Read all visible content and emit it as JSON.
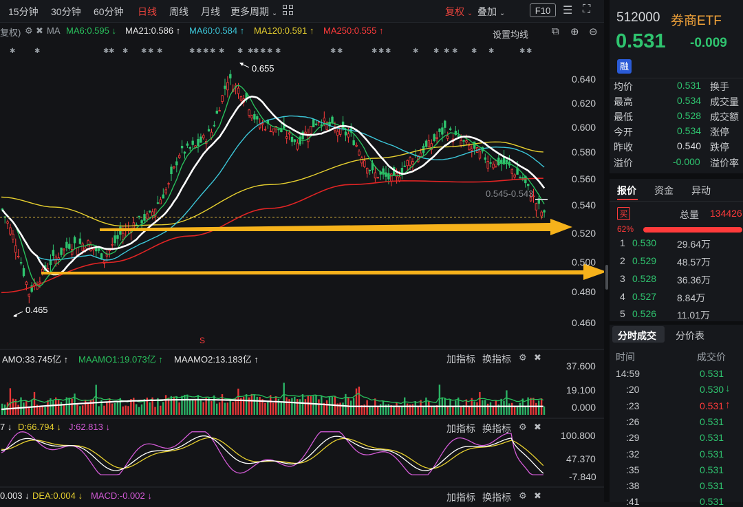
{
  "toolbar": {
    "timeframes": [
      "15分钟",
      "30分钟",
      "60分钟",
      "日线",
      "周线",
      "月线",
      "更多周期"
    ],
    "active": "日线",
    "fq": "复权",
    "overlay": "叠加",
    "f10": "F10"
  },
  "ma_legend": {
    "prefix": "复权)",
    "label": "MA",
    "ma6": "MA6:0.595 ↓",
    "ma21": "MA21:0.586 ↑",
    "ma60": "MA60:0.584 ↑",
    "ma120": "MA120:0.591 ↑",
    "ma250": "MA250:0.555 ↑",
    "settings": "设置均线"
  },
  "price_axis": [
    "0.640",
    "0.620",
    "0.600",
    "0.580",
    "0.560",
    "0.540",
    "0.520",
    "0.500",
    "0.480",
    "0.460"
  ],
  "annotations": {
    "high": "0.655",
    "low": "0.465",
    "range": "0.545-0.543",
    "signal": "S"
  },
  "amo": {
    "amo": "AMO:33.745亿 ↑",
    "maamo1": "MAAMO1:19.073亿 ↑",
    "maamo2": "MAAMO2:13.183亿 ↑",
    "add": "加指标",
    "switch": "换指标",
    "axis": [
      "37.600",
      "19.100",
      "0.000"
    ]
  },
  "kdj": {
    "k": "7 ↓",
    "d": "D:66.794 ↓",
    "j": "J:62.813 ↓",
    "add": "加指标",
    "switch": "换指标",
    "axis": [
      "100.800",
      "47.370",
      "-7.840"
    ]
  },
  "macd": {
    "dif": "0.003 ↓",
    "dea": "DEA:0.004 ↓",
    "macd": "MACD:-0.002 ↓",
    "add": "加指标",
    "switch": "换指标"
  },
  "quote": {
    "code": "512000",
    "name": "券商ETF",
    "price": "0.531",
    "change": "-0.009",
    "badge": "融",
    "rows": [
      {
        "l1": "均价",
        "v": "0.531",
        "l2": "换手"
      },
      {
        "l1": "最高",
        "v": "0.534",
        "l2": "成交量"
      },
      {
        "l1": "最低",
        "v": "0.528",
        "l2": "成交额"
      },
      {
        "l1": "今开",
        "v": "0.534",
        "l2": "涨停"
      },
      {
        "l1": "昨收",
        "v": "0.540",
        "l2": "跌停"
      },
      {
        "l1": "溢价",
        "v": "-0.000",
        "l2": "溢价率"
      }
    ]
  },
  "tabs": [
    "报价",
    "资金",
    "异动"
  ],
  "orderbook": {
    "buy_badge": "买",
    "total_label": "总量",
    "total_value": "134426",
    "pct": "62%",
    "bids": [
      {
        "n": "1",
        "p": "0.530",
        "v": "29.64万"
      },
      {
        "n": "2",
        "p": "0.529",
        "v": "48.57万"
      },
      {
        "n": "3",
        "p": "0.528",
        "v": "36.36万"
      },
      {
        "n": "4",
        "p": "0.527",
        "v": "8.84万"
      },
      {
        "n": "5",
        "p": "0.526",
        "v": "11.01万"
      }
    ]
  },
  "trades": {
    "tabs": [
      "分时成交",
      "分价表"
    ],
    "col_time": "时间",
    "col_price": "成交价",
    "rows": [
      {
        "t": "14:59",
        "p": "0.531",
        "a": ""
      },
      {
        "t": ":20",
        "p": "0.530",
        "a": "↓"
      },
      {
        "t": ":23",
        "p": "0.531",
        "a": "↑"
      },
      {
        "t": ":26",
        "p": "0.531",
        "a": ""
      },
      {
        "t": ":29",
        "p": "0.531",
        "a": ""
      },
      {
        "t": ":32",
        "p": "0.531",
        "a": ""
      },
      {
        "t": ":35",
        "p": "0.531",
        "a": ""
      },
      {
        "t": ":38",
        "p": "0.531",
        "a": ""
      },
      {
        "t": ":41",
        "p": "0.531",
        "a": ""
      }
    ]
  },
  "colors": {
    "up": "#ff3b3b",
    "down": "#2fc46f",
    "ma6": "#29c05c",
    "ma21": "#ffffff",
    "ma60": "#3cc6d8",
    "ma120": "#e6cf2f",
    "ma250": "#e02424",
    "arrow": "#f6b21b"
  }
}
